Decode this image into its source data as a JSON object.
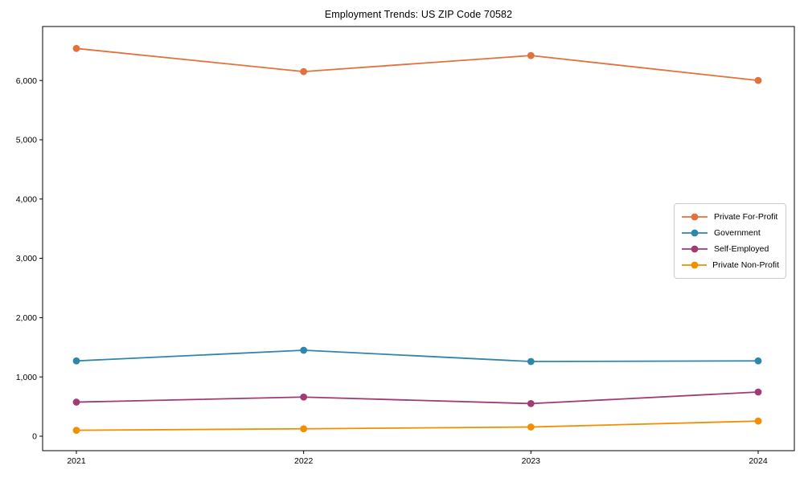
{
  "title": "Employment Trends: US ZIP Code 70582",
  "chart_data": {
    "type": "line",
    "title": "Employment Trends: US ZIP Code 70582",
    "x": [
      2021,
      2022,
      2023,
      2024
    ],
    "x_tick_labels": [
      "2021",
      "2022",
      "2023",
      "2024"
    ],
    "y_ticks": [
      0,
      1000,
      2000,
      3000,
      4000,
      5000,
      6000
    ],
    "y_tick_labels": [
      "0",
      "1,000",
      "2,000",
      "3,000",
      "4,000",
      "5,000",
      "6,000"
    ],
    "ylim": [
      -244,
      6910
    ],
    "grid": false,
    "marker": "circle",
    "legend_position": "center-right",
    "axis_color": "#000000",
    "background_color": "#ffffff",
    "series": [
      {
        "name": "Private For-Profit",
        "color": "#E2713C",
        "values": [
          6540,
          6150,
          6420,
          6000
        ]
      },
      {
        "name": "Government",
        "color": "#2E86AB",
        "values": [
          1270,
          1450,
          1260,
          1270
        ]
      },
      {
        "name": "Self-Employed",
        "color": "#A23B72",
        "values": [
          575,
          660,
          550,
          745
        ]
      },
      {
        "name": "Private Non-Profit",
        "color": "#F18F01",
        "values": [
          100,
          125,
          155,
          255
        ]
      }
    ]
  }
}
